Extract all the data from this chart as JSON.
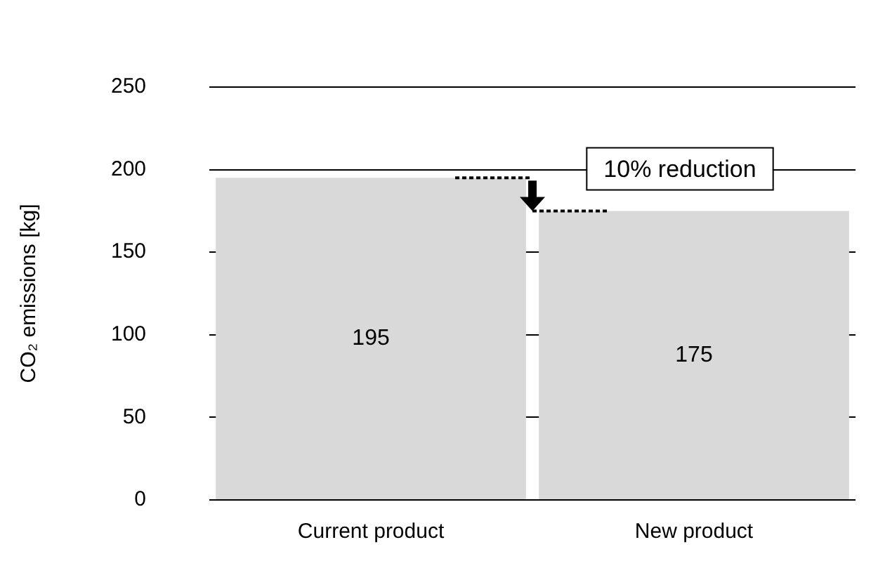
{
  "chart_data": {
    "type": "bar",
    "categories": [
      "Current product",
      "New product"
    ],
    "values": [
      195,
      175
    ],
    "color": "#d9d9d9",
    "ylabel": "CO₂ emissions [kg]",
    "ylim": [
      0,
      250
    ],
    "yticks": [
      0,
      50,
      100,
      150,
      200,
      250
    ],
    "grid": "y",
    "data_labels": true,
    "annotations": [
      {
        "text": "10% reduction",
        "x": "New product",
        "y": 175
      }
    ]
  }
}
